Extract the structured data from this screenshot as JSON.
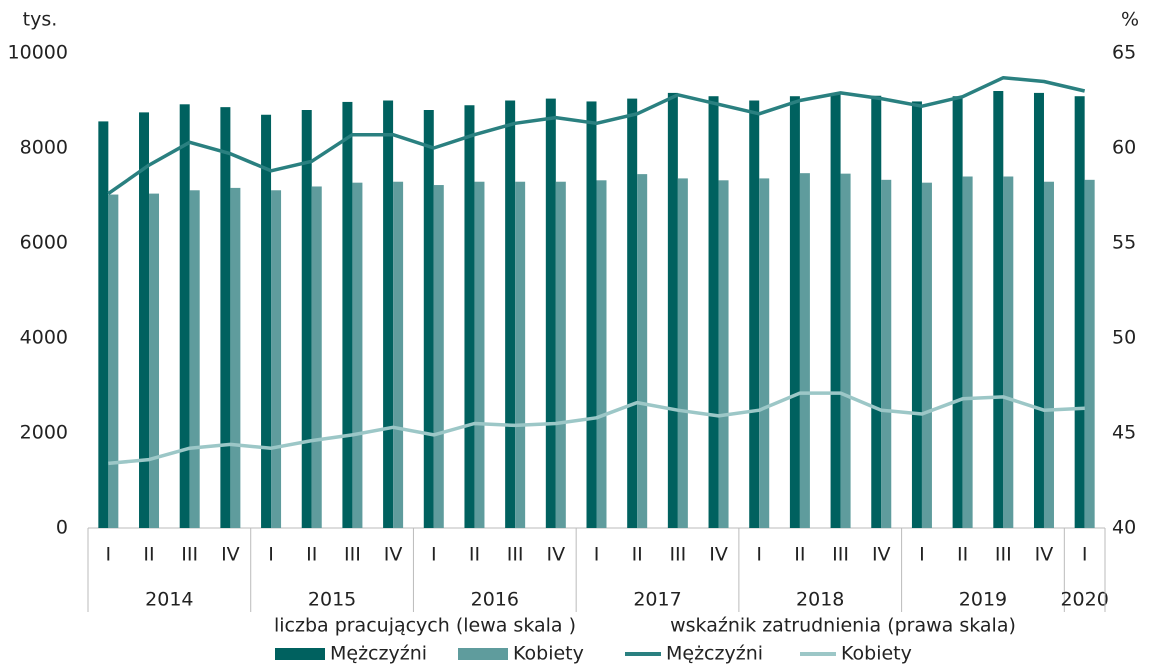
{
  "chart_data": {
    "type": "bar",
    "y_label": "tys.",
    "y2_label": "%",
    "categories": [
      "I",
      "II",
      "III",
      "IV",
      "I",
      "II",
      "III",
      "IV",
      "I",
      "II",
      "III",
      "IV",
      "I",
      "II",
      "III",
      "IV",
      "I",
      "II",
      "III",
      "IV",
      "I",
      "II",
      "III",
      "IV",
      "I"
    ],
    "years": [
      "2014",
      "2014",
      "2014",
      "2014",
      "2015",
      "2015",
      "2015",
      "2015",
      "2016",
      "2016",
      "2016",
      "2016",
      "2017",
      "2017",
      "2017",
      "2017",
      "2018",
      "2018",
      "2018",
      "2018",
      "2019",
      "2019",
      "2019",
      "2019",
      "2020"
    ],
    "legend_groups": [
      "liczba pracujących (lewa skala )",
      "wskaźnik zatrudnienia (prawa skala)"
    ],
    "series": [
      {
        "name": "Mężczyźni",
        "type": "bar",
        "axis": "y",
        "legend_group": 0,
        "color": "#00615f",
        "values": [
          8560,
          8750,
          8920,
          8860,
          8700,
          8800,
          8970,
          9000,
          8800,
          8900,
          9000,
          9040,
          8980,
          9040,
          9160,
          9090,
          9000,
          9090,
          9150,
          9100,
          8980,
          9090,
          9200,
          9160,
          9090
        ]
      },
      {
        "name": "Kobiety",
        "type": "bar",
        "axis": "y",
        "legend_group": 0,
        "color": "#5f9c9d",
        "values": [
          7020,
          7040,
          7110,
          7160,
          7110,
          7190,
          7270,
          7290,
          7220,
          7290,
          7290,
          7290,
          7320,
          7450,
          7360,
          7320,
          7360,
          7470,
          7460,
          7330,
          7270,
          7400,
          7400,
          7290,
          7330
        ]
      },
      {
        "name": "Mężczyźni",
        "type": "line",
        "axis": "y2",
        "legend_group": 1,
        "color": "#2a8080",
        "values": [
          57.6,
          59.1,
          60.3,
          59.7,
          58.8,
          59.3,
          60.7,
          60.7,
          60.0,
          60.7,
          61.3,
          61.6,
          61.3,
          61.8,
          62.8,
          62.3,
          61.8,
          62.5,
          62.9,
          62.6,
          62.2,
          62.7,
          63.7,
          63.5,
          63.0
        ]
      },
      {
        "name": "Kobiety",
        "type": "line",
        "axis": "y2",
        "legend_group": 1,
        "color": "#9cc7c7",
        "values": [
          43.4,
          43.6,
          44.2,
          44.4,
          44.2,
          44.6,
          44.9,
          45.3,
          44.9,
          45.5,
          45.4,
          45.5,
          45.8,
          46.6,
          46.2,
          45.9,
          46.2,
          47.1,
          47.1,
          46.2,
          46.0,
          46.8,
          46.9,
          46.2,
          46.3
        ]
      }
    ],
    "ylim": [
      0,
      10000
    ],
    "yticks": [
      0,
      2000,
      4000,
      6000,
      8000,
      10000
    ],
    "y2lim": [
      40,
      65
    ],
    "y2ticks": [
      40,
      45,
      50,
      55,
      60,
      65
    ],
    "grid": false
  }
}
